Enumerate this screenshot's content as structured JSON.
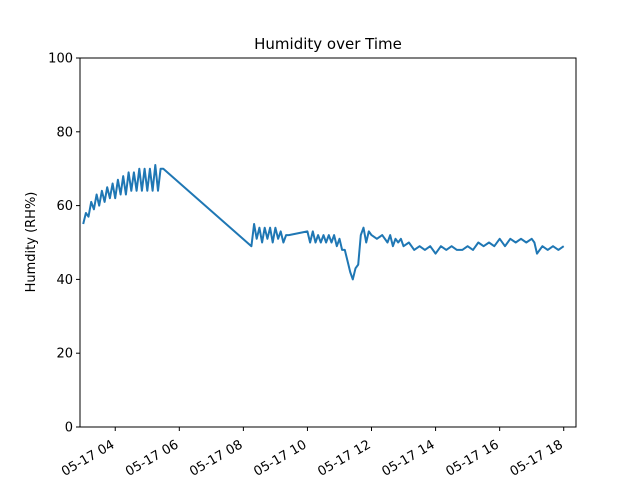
{
  "chart_data": {
    "type": "line",
    "title": "Humidity over Time",
    "xlabel": "",
    "ylabel": "Humdity (RH%)",
    "ylim": [
      0,
      100
    ],
    "xlim": [
      "2024-05-17 02:54",
      "2024-05-17 18:23"
    ],
    "x_tick_format": "MM-DD HH",
    "y_ticks": [
      0,
      20,
      40,
      60,
      80,
      100
    ],
    "x_ticks": [
      "05-17 04",
      "05-17 06",
      "05-17 08",
      "05-17 10",
      "05-17 12",
      "05-17 14",
      "05-17 16",
      "05-17 18"
    ],
    "grid": false,
    "line_color": "#1f77b4",
    "series": [
      {
        "x": [
          "2024-05-17 03:00",
          "2024-05-17 03:05",
          "2024-05-17 03:10",
          "2024-05-17 03:15",
          "2024-05-17 03:20",
          "2024-05-17 03:25",
          "2024-05-17 03:30",
          "2024-05-17 03:35",
          "2024-05-17 03:40",
          "2024-05-17 03:45",
          "2024-05-17 03:50",
          "2024-05-17 03:55",
          "2024-05-17 04:00",
          "2024-05-17 04:05",
          "2024-05-17 04:10",
          "2024-05-17 04:15",
          "2024-05-17 04:20",
          "2024-05-17 04:25",
          "2024-05-17 04:30",
          "2024-05-17 04:35",
          "2024-05-17 04:40",
          "2024-05-17 04:45",
          "2024-05-17 04:50",
          "2024-05-17 04:55",
          "2024-05-17 05:00",
          "2024-05-17 05:05",
          "2024-05-17 05:10",
          "2024-05-17 05:15",
          "2024-05-17 05:20",
          "2024-05-17 05:25",
          "2024-05-17 05:30",
          "2024-05-17 08:15",
          "2024-05-17 08:20",
          "2024-05-17 08:25",
          "2024-05-17 08:30",
          "2024-05-17 08:35",
          "2024-05-17 08:40",
          "2024-05-17 08:45",
          "2024-05-17 08:50",
          "2024-05-17 08:55",
          "2024-05-17 09:00",
          "2024-05-17 09:05",
          "2024-05-17 09:10",
          "2024-05-17 09:15",
          "2024-05-17 09:20",
          "2024-05-17 09:25",
          "2024-05-17 10:00",
          "2024-05-17 10:05",
          "2024-05-17 10:10",
          "2024-05-17 10:15",
          "2024-05-17 10:20",
          "2024-05-17 10:25",
          "2024-05-17 10:30",
          "2024-05-17 10:35",
          "2024-05-17 10:40",
          "2024-05-17 10:45",
          "2024-05-17 10:50",
          "2024-05-17 10:55",
          "2024-05-17 11:00",
          "2024-05-17 11:05",
          "2024-05-17 11:10",
          "2024-05-17 11:15",
          "2024-05-17 11:20",
          "2024-05-17 11:25",
          "2024-05-17 11:30",
          "2024-05-17 11:35",
          "2024-05-17 11:40",
          "2024-05-17 11:45",
          "2024-05-17 11:50",
          "2024-05-17 11:55",
          "2024-05-17 12:00",
          "2024-05-17 12:10",
          "2024-05-17 12:20",
          "2024-05-17 12:30",
          "2024-05-17 12:35",
          "2024-05-17 12:40",
          "2024-05-17 12:45",
          "2024-05-17 12:50",
          "2024-05-17 12:55",
          "2024-05-17 13:00",
          "2024-05-17 13:10",
          "2024-05-17 13:20",
          "2024-05-17 13:30",
          "2024-05-17 13:40",
          "2024-05-17 13:50",
          "2024-05-17 14:00",
          "2024-05-17 14:10",
          "2024-05-17 14:20",
          "2024-05-17 14:30",
          "2024-05-17 14:40",
          "2024-05-17 14:50",
          "2024-05-17 15:00",
          "2024-05-17 15:10",
          "2024-05-17 15:20",
          "2024-05-17 15:30",
          "2024-05-17 15:40",
          "2024-05-17 15:50",
          "2024-05-17 16:00",
          "2024-05-17 16:10",
          "2024-05-17 16:20",
          "2024-05-17 16:30",
          "2024-05-17 16:40",
          "2024-05-17 16:50",
          "2024-05-17 17:00",
          "2024-05-17 17:05",
          "2024-05-17 17:10",
          "2024-05-17 17:20",
          "2024-05-17 17:30",
          "2024-05-17 17:40",
          "2024-05-17 17:50",
          "2024-05-17 18:00"
        ],
        "y": [
          55,
          58,
          57,
          61,
          59,
          63,
          60,
          64,
          61,
          65,
          62,
          66,
          62,
          67,
          63,
          68,
          63,
          69,
          64,
          69,
          64,
          70,
          64,
          70,
          64,
          70,
          64,
          71,
          64,
          70,
          70,
          49,
          55,
          51,
          54,
          50,
          54,
          51,
          54,
          50,
          54,
          51,
          53,
          50,
          52,
          52,
          53,
          50,
          53,
          50,
          52,
          50,
          52,
          50,
          52,
          50,
          52,
          49,
          51,
          48,
          48,
          45,
          42,
          40,
          43,
          44,
          52,
          54,
          50,
          53,
          52,
          51,
          52,
          50,
          52,
          49,
          51,
          50,
          51,
          49,
          50,
          48,
          49,
          48,
          49,
          47,
          49,
          48,
          49,
          48,
          48,
          49,
          48,
          50,
          49,
          50,
          49,
          51,
          49,
          51,
          50,
          51,
          50,
          51,
          50,
          47,
          49,
          48,
          49,
          48,
          49
        ]
      }
    ]
  }
}
